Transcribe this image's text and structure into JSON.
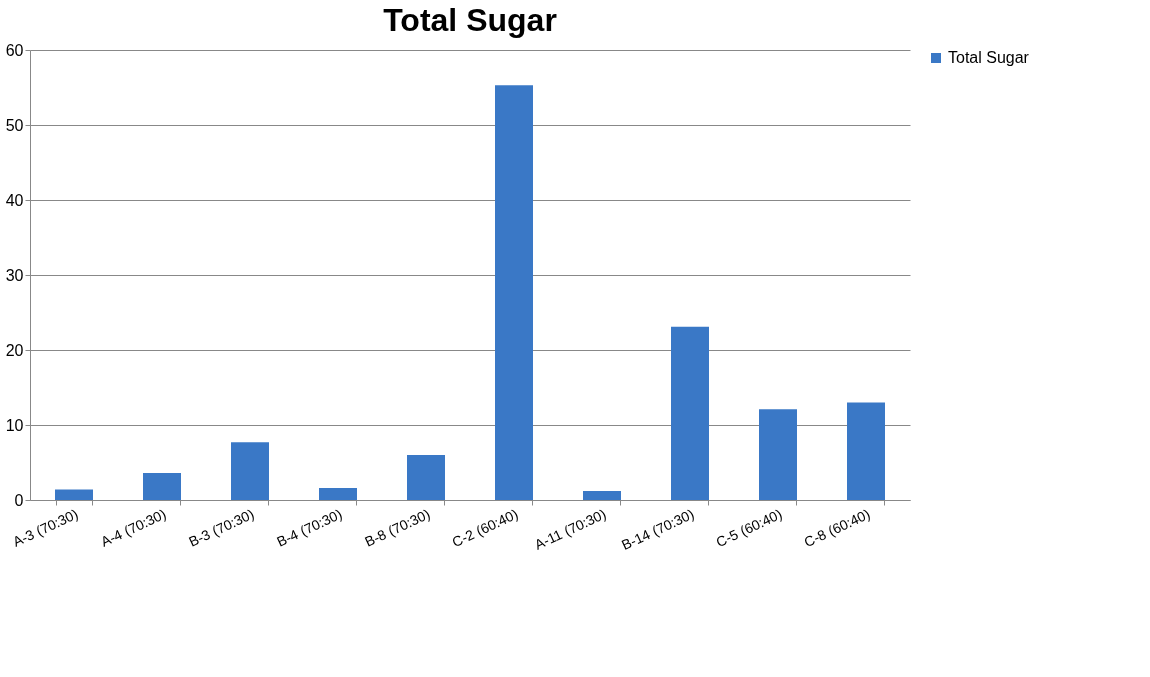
{
  "chart_data": {
    "type": "bar",
    "title": "Total Sugar",
    "categories": [
      "A-3 (70:30)",
      "A-4 (70:30)",
      "B-3 (70:30)",
      "B-4 (70:30)",
      "B-8 (70:30)",
      "C-2 (60:40)",
      "A-11 (70:30)",
      "B-14 (70:30)",
      "C-5 (60:40)",
      "C-8 (60:40)"
    ],
    "series": [
      {
        "name": "Total Sugar",
        "color": "#3a78c6",
        "values": [
          1.4,
          3.6,
          7.7,
          1.6,
          6.0,
          55.3,
          1.2,
          23.1,
          12.1,
          13.0
        ]
      }
    ],
    "ylim": [
      0,
      60
    ],
    "yticks": [
      0,
      10,
      20,
      30,
      40,
      50,
      60
    ],
    "grid": "y",
    "legend": "right"
  }
}
